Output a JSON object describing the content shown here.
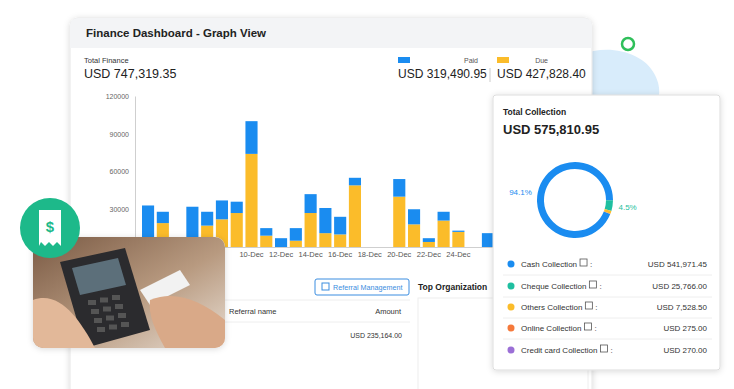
{
  "page": {
    "total_finance": "USD 747,319.35",
    "paid_total": "USD 319,490.95",
    "due_total": "USD 427,828.40",
    "referral_button": "Referral Management",
    "table_header": [
      "Referral name",
      "Amount"
    ],
    "table_row_amount": "USD 235,164.00",
    "top_organization": "Top Organization",
    "icon_text": "$",
    "collection_total": "USD 575,810.95",
    "collection_amounts": [
      "USD 541,971.45",
      "USD 25,766.00",
      "USD 7,528.50",
      "USD 275.00",
      "USD 270.00"
    ],
    "separator": ":"
  },
  "chart_data": [
    {
      "type": "bar",
      "title": "Finance Dashboard - Graph View",
      "subtitle": "Total Finance",
      "stacked": true,
      "grid": false,
      "legend": "top-right",
      "categories": [
        null,
        null,
        null,
        null,
        null,
        null,
        null,
        "10-Dec",
        null,
        "12-Dec",
        null,
        "14-Dec",
        null,
        "16-Dec",
        null,
        "18-Dec",
        null,
        "20-Dec",
        null,
        "22-Dec",
        null,
        "24-Dec",
        null,
        null
      ],
      "series": [
        {
          "name": "Paid",
          "color": "#1a8cf0",
          "values": [
            26000,
            9000,
            0,
            27000,
            11000,
            15000,
            9000,
            26000,
            6000,
            7000,
            10000,
            15000,
            20000,
            14000,
            6000,
            0,
            0,
            14000,
            12000,
            3000,
            7000,
            1000,
            0,
            11000
          ]
        },
        {
          "name": "Due",
          "color": "#fbbc2a",
          "values": [
            7000,
            19000,
            0,
            5000,
            17000,
            22000,
            27000,
            74000,
            9000,
            0,
            5000,
            27000,
            11000,
            10000,
            49000,
            0,
            0,
            40000,
            18000,
            4000,
            21000,
            12000,
            0,
            0
          ]
        }
      ],
      "ylim": [
        0,
        120000
      ],
      "yticks": [
        30000,
        60000,
        90000,
        120000
      ]
    },
    {
      "type": "pie",
      "title": "Total Collection",
      "categories": [
        "Cash Collection",
        "Cheque Collection",
        "Others Collection",
        "Online Collection",
        "Credit card Collection"
      ],
      "values": [
        94.1,
        4.5,
        1.3,
        0.05,
        0.05
      ],
      "value_labels": [
        "94.1%",
        "4.5%",
        null,
        null,
        null
      ],
      "colors": [
        "#1a8cf0",
        "#1fbfa0",
        "#fbbc2a",
        "#f5793b",
        "#9b6fd6"
      ],
      "data_labels": true
    }
  ]
}
